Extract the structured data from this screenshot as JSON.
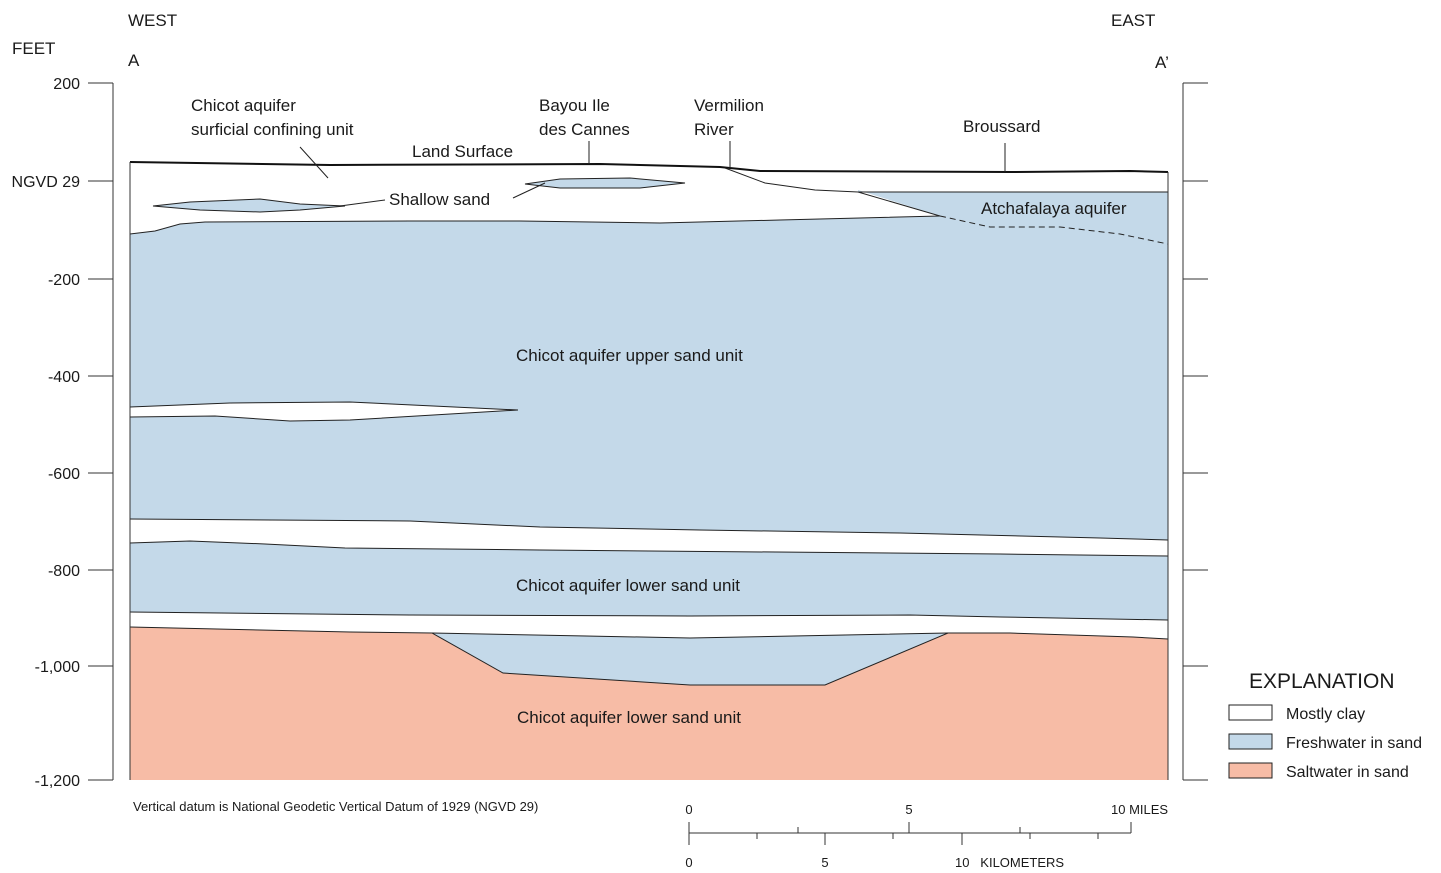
{
  "header": {
    "west": "WEST",
    "east": "EAST",
    "feet": "FEET",
    "a": "A",
    "a_prime": "A’",
    "datum_tick": "NGVD 29"
  },
  "y_axis": {
    "ticks": [
      "200",
      "-200",
      "-400",
      "-600",
      "-800",
      "-1,000",
      "-1,200"
    ]
  },
  "labels": {
    "surficial": [
      "Chicot aquifer",
      "surficial confining unit"
    ],
    "bayou": [
      "Bayou Ile",
      "des Cannes"
    ],
    "vermilion": [
      "Vermilion",
      "River"
    ],
    "broussard": "Broussard",
    "land_surface": "Land Surface",
    "shallow_sand": "Shallow sand",
    "atchafalaya": "Atchafalaya aquifer",
    "upper_sand": "Chicot aquifer upper sand unit",
    "lower_sand_fresh": "Chicot aquifer lower sand unit",
    "lower_sand_salt": "Chicot aquifer lower sand unit"
  },
  "footnote": "Vertical datum is National Geodetic Vertical Datum of 1929 (NGVD 29)",
  "scale_bar": {
    "miles_labels": [
      "0",
      "5",
      "10 MILES"
    ],
    "km_labels": [
      "0",
      "5",
      "10   KILOMETERS"
    ]
  },
  "explanation": {
    "title": "EXPLANATION",
    "items": [
      {
        "label": "Mostly clay",
        "color": "#ffffff"
      },
      {
        "label": "Freshwater in sand",
        "color": "#c4d9e9"
      },
      {
        "label": "Saltwater in sand",
        "color": "#f7bca6"
      }
    ]
  },
  "colors": {
    "freshwater": "#c4d9e9",
    "saltwater": "#f7bca6",
    "clay": "#ffffff"
  }
}
